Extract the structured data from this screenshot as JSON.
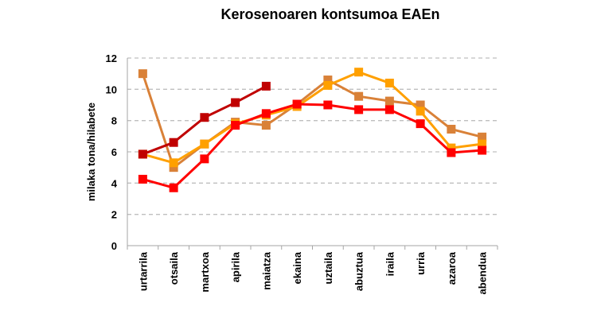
{
  "chart_data": {
    "type": "line",
    "title": "Kerosenoaren kontsumoa EAEn",
    "xlabel": "",
    "ylabel": "milaka tona/hilabete",
    "ylim": [
      0,
      12
    ],
    "yticks": [
      0,
      2,
      4,
      6,
      8,
      10,
      12
    ],
    "grid": true,
    "legend": "none",
    "categories": [
      "urtarrila",
      "otsaila",
      "martxoa",
      "apirila",
      "maiatza",
      "ekaina",
      "uztaila",
      "abuztua",
      "iraila",
      "urria",
      "azaroa",
      "abendua"
    ],
    "series": [
      {
        "color": "#D98138",
        "values": [
          11.0,
          5.0,
          6.5,
          7.9,
          7.7,
          9.05,
          10.6,
          9.55,
          9.25,
          9.0,
          7.45,
          6.95
        ]
      },
      {
        "color": "#FFA000",
        "values": [
          5.85,
          5.3,
          6.5,
          7.8,
          8.35,
          8.9,
          10.25,
          11.1,
          10.4,
          8.6,
          6.25,
          6.5
        ]
      },
      {
        "color": "#FF0000",
        "values": [
          4.25,
          3.7,
          5.55,
          7.7,
          8.45,
          9.05,
          9.0,
          8.7,
          8.7,
          7.8,
          5.95,
          6.1
        ]
      },
      {
        "color": "#C00000",
        "values": [
          5.85,
          6.6,
          8.2,
          9.15,
          10.2,
          null,
          null,
          null,
          null,
          null,
          null,
          null
        ]
      }
    ]
  }
}
